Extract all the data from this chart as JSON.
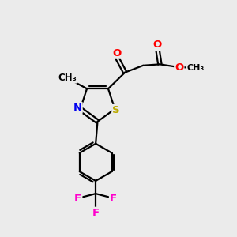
{
  "bg_color": "#ebebeb",
  "bond_color": "#000000",
  "bond_width": 1.6,
  "atom_colors": {
    "O": "#ff0000",
    "N": "#0000ee",
    "S": "#bbaa00",
    "F": "#ff00cc",
    "C": "#000000"
  },
  "font_size": 9.5
}
